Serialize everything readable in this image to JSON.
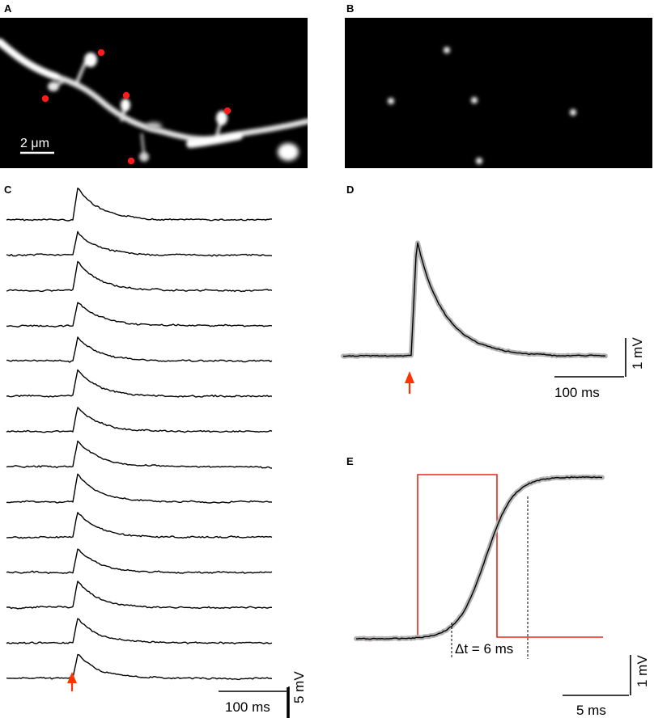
{
  "figure": {
    "panels": [
      "A",
      "B",
      "C",
      "D",
      "E"
    ],
    "panel_a": {
      "scale_bar_label": "2 μm",
      "uncaging_spot_color": "#ff1a1a",
      "uncaging_spot_count": 5
    },
    "panel_b": {
      "spot_count": 5
    },
    "panel_c": {
      "trace_count": 14,
      "scale_voltage_label": "5 mV",
      "scale_time_label": "100 ms",
      "stimulus_marker_color": "#ff3300"
    },
    "panel_d": {
      "scale_voltage_label": "1 mV",
      "scale_time_label": "100 ms",
      "stimulus_marker_color": "#ff3300"
    },
    "panel_e": {
      "delta_label": "Δt =  6 ms",
      "scale_voltage_label": "1 mV",
      "scale_time_label": "5 ms",
      "pulse_color": "#e8241c",
      "delta_t_ms": 6
    }
  }
}
